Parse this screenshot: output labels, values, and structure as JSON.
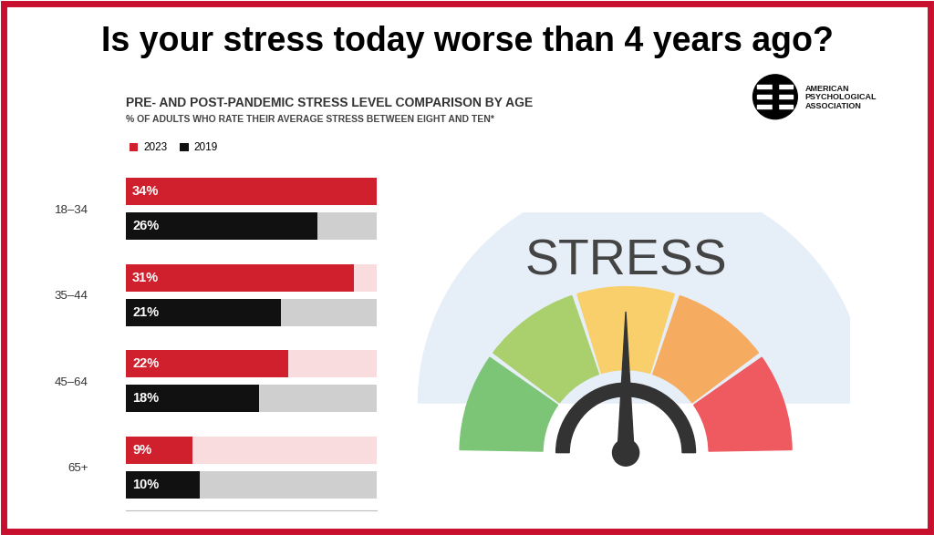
{
  "chart_data": {
    "type": "bar",
    "orientation": "horizontal",
    "title": "Is your stress today worse than 4 years ago?",
    "subtitle": "PRE- AND POST-PANDEMIC STRESS LEVEL COMPARISON BY AGE",
    "annotations": [
      "% OF ADULTS WHO RATE THEIR AVERAGE STRESS BETWEEN EIGHT AND TEN*",
      "AMERICAN\nPSYCHOLOGICAL\nASSOCIATION",
      "STRESS"
    ],
    "categories": [
      "18–34",
      "35–44",
      "45–64",
      "65+"
    ],
    "series": [
      {
        "name": "2023",
        "color": "#d0202e",
        "values": [
          34,
          31,
          22,
          9
        ],
        "value_labels": [
          "34%",
          "31%",
          "22%",
          "9%"
        ]
      },
      {
        "name": "2019",
        "color": "#111111",
        "values": [
          26,
          21,
          18,
          10
        ],
        "value_labels": [
          "26%",
          "21%",
          "18%",
          "10%"
        ]
      }
    ],
    "xlim": [
      0,
      34
    ],
    "xticks": [],
    "tick_labels": "y",
    "data_labels": true,
    "legend": "upper left",
    "grid": false
  }
}
